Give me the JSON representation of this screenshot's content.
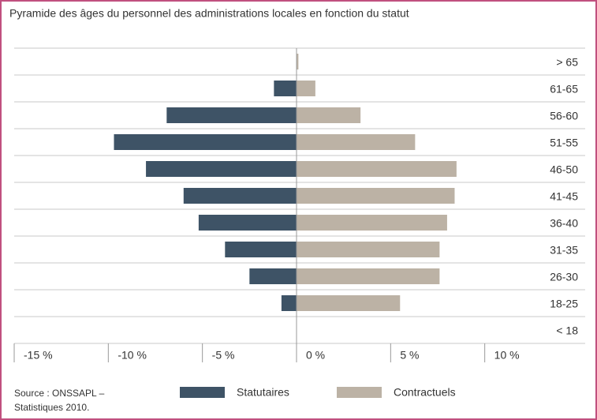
{
  "chart_data": {
    "type": "bar",
    "orientation": "horizontal",
    "title": "Pyramide des âges du personnel des administrations locales en fonction du statut",
    "categories": [
      "> 65",
      "61-65",
      "56-60",
      "51-55",
      "46-50",
      "41-45",
      "36-40",
      "31-35",
      "26-30",
      "18-25",
      "< 18"
    ],
    "series": [
      {
        "name": "Statutaires",
        "color": "#3e5366",
        "values": [
          0,
          -1.2,
          -6.9,
          -9.7,
          -8.0,
          -6.0,
          -5.2,
          -3.8,
          -2.5,
          -0.8,
          0
        ]
      },
      {
        "name": "Contractuels",
        "color": "#bcb2a5",
        "values": [
          0.1,
          1.0,
          3.4,
          6.3,
          8.5,
          8.4,
          8.0,
          7.6,
          7.6,
          5.5,
          0
        ]
      }
    ],
    "xlim": [
      -15,
      15
    ],
    "xticks": [
      {
        "value": -15,
        "label": "-15 %"
      },
      {
        "value": -10,
        "label": "-10 %"
      },
      {
        "value": -5,
        "label": "-5 %"
      },
      {
        "value": 0,
        "label": "0 %"
      },
      {
        "value": 5,
        "label": "5 %"
      },
      {
        "value": 10,
        "label": "10 %"
      }
    ],
    "source": [
      "Source : ONSSAPL –",
      "Statistiques 2010."
    ]
  }
}
